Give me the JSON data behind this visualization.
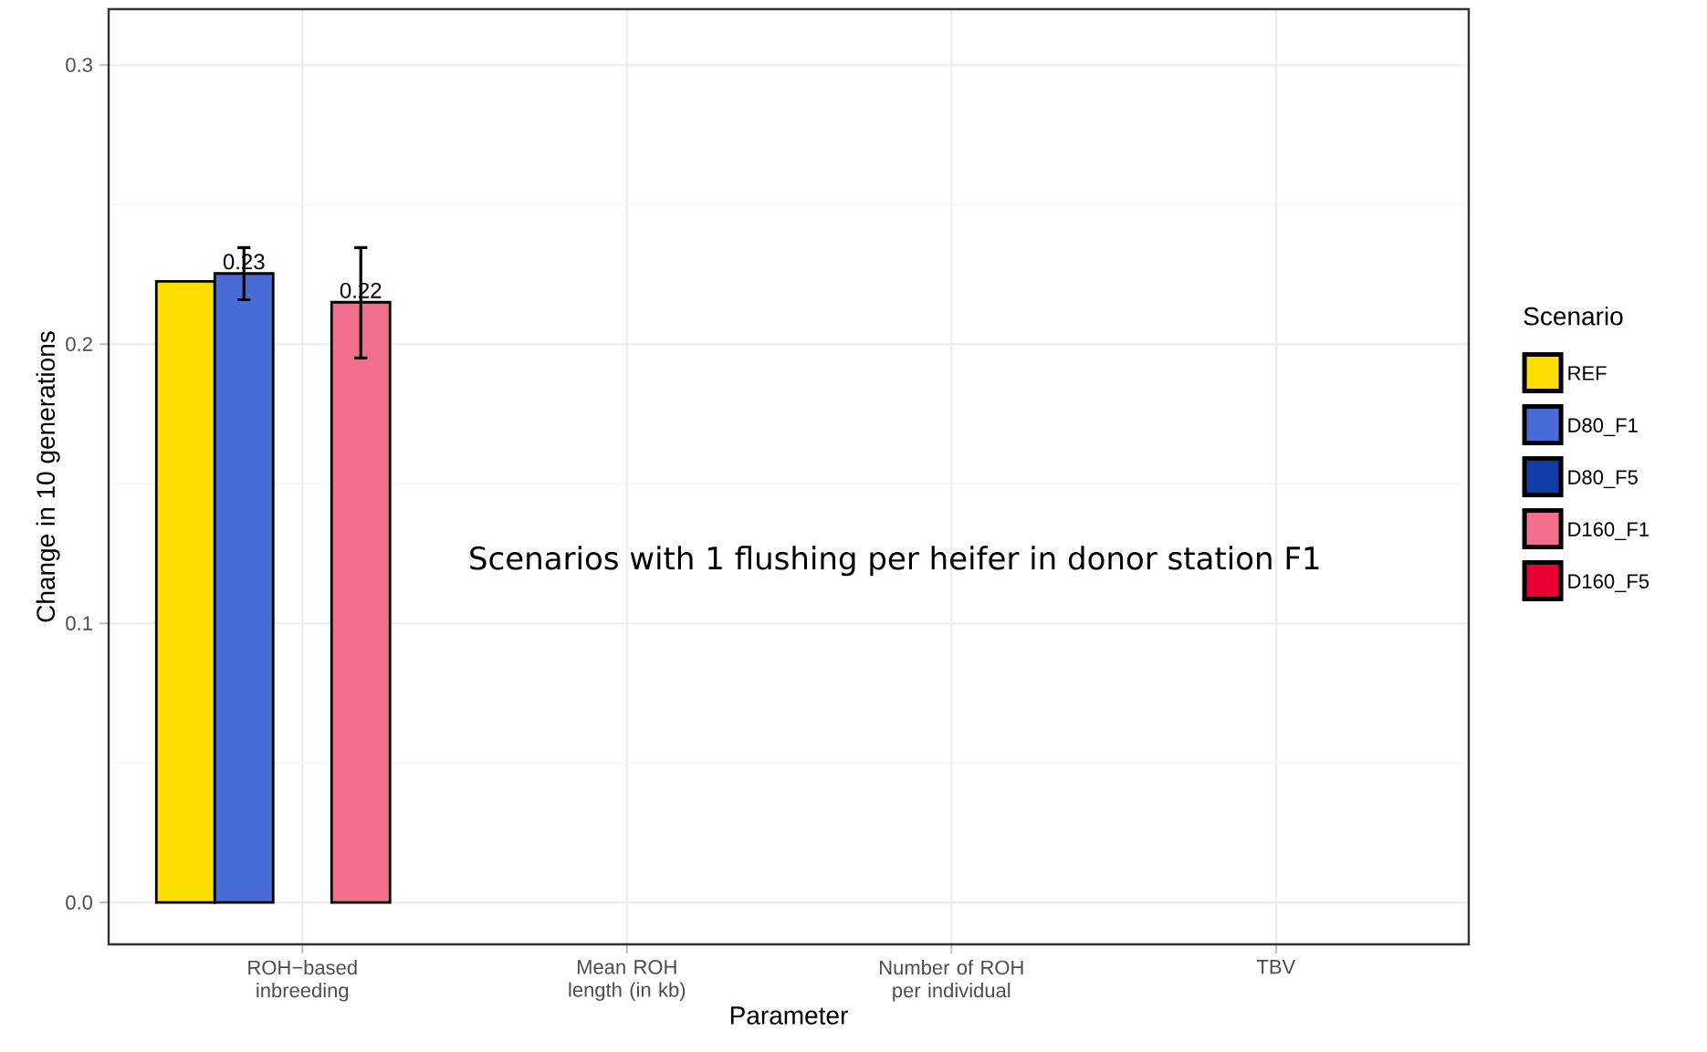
{
  "chart_data": {
    "type": "bar",
    "xlabel": "Parameter",
    "ylabel": "Change in 10 generations",
    "legend_title": "Scenario",
    "legend": "right",
    "grid": true,
    "categories": [
      "ROH−based inbreeding",
      "Mean ROH length (in kb)",
      "Number of ROH per individual",
      "TBV"
    ],
    "ylim": [
      -0.015,
      0.32
    ],
    "yticks": [
      {
        "value": 0,
        "label": "0.0"
      },
      0.1,
      0.2,
      0.3
    ],
    "series": [
      {
        "name": "REF",
        "color": "#ffdd00",
        "values": [
          0.2225,
          null,
          null,
          null
        ]
      },
      {
        "name": "D80_F1",
        "color": "#476cd6",
        "values": [
          0.2253,
          null,
          null,
          null
        ],
        "errors": [
          [
            0.2159,
            0.2346
          ],
          null,
          null,
          null
        ],
        "value_labels": [
          "0.23",
          null,
          null,
          null
        ]
      },
      {
        "name": "D80_F5",
        "color": "#133ca9",
        "values": [
          null,
          null,
          null,
          null
        ]
      },
      {
        "name": "D160_F1",
        "color": "#f2708b",
        "values": [
          0.215,
          null,
          null,
          null
        ],
        "errors": [
          [
            0.195,
            0.2346
          ],
          null,
          null,
          null
        ],
        "value_labels": [
          "0.22",
          null,
          null,
          null
        ]
      },
      {
        "name": "D160_F5",
        "color": "#e80033",
        "values": [
          null,
          null,
          null,
          null
        ]
      }
    ],
    "annotations": [
      "Scenarios with 1 flushing per heifer in donor station F1"
    ]
  }
}
